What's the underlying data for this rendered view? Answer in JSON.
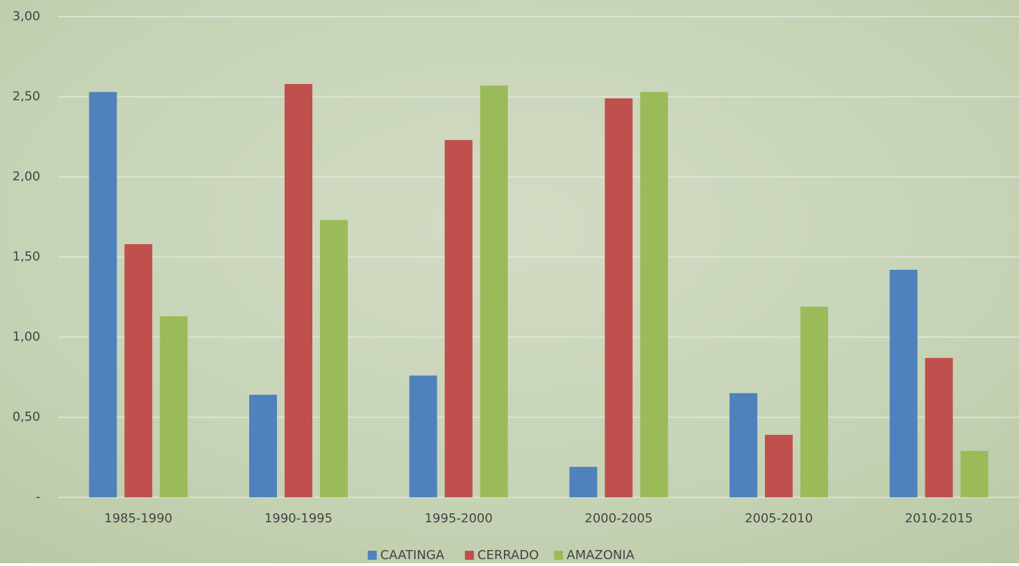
{
  "chart_data": {
    "type": "bar",
    "categories": [
      "1985-1990",
      "1990-1995",
      "1995-2000",
      "2000-2005",
      "2005-2010",
      "2010-2015"
    ],
    "series": [
      {
        "name": "CAATINGA",
        "color": "#4f81bd",
        "values": [
          2.53,
          0.64,
          0.76,
          0.19,
          0.65,
          1.42
        ]
      },
      {
        "name": "CERRADO",
        "color": "#c0504d",
        "values": [
          1.58,
          2.58,
          2.23,
          2.49,
          0.39,
          0.87
        ]
      },
      {
        "name": "AMAZONIA",
        "color": "#9bbb59",
        "values": [
          1.13,
          1.73,
          2.57,
          2.53,
          1.19,
          0.29
        ]
      }
    ],
    "ylim": [
      0,
      3
    ],
    "yticks": [
      {
        "value": 0,
        "label": "-"
      },
      {
        "value": 0.5,
        "label": "0,50"
      },
      {
        "value": 1,
        "label": "1,00"
      },
      {
        "value": 1.5,
        "label": "1,50"
      },
      {
        "value": 2,
        "label": "2,00"
      },
      {
        "value": 2.5,
        "label": "2,50"
      },
      {
        "value": 3,
        "label": "3,00"
      }
    ],
    "grid": true,
    "legend": "bottom"
  }
}
